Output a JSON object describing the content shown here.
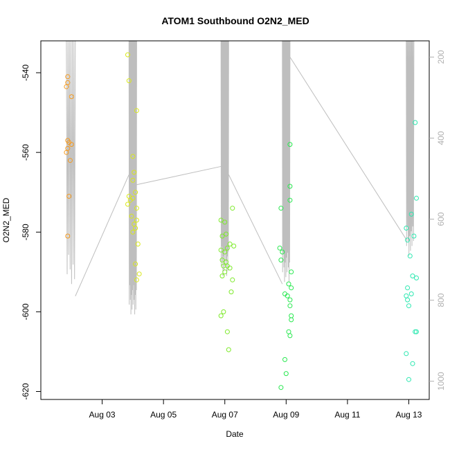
{
  "chart_data": {
    "type": "scatter",
    "title": "ATOM1 Southbound O2N2_MED",
    "xlabel": "Date",
    "ylabel": "O2N2_MED",
    "x_unit": "date",
    "xlim": [
      "2022-08-01T00:00",
      "2022-08-13T16:00"
    ],
    "ylim": [
      -622,
      -532
    ],
    "y2lim": [
      1045,
      160
    ],
    "x_ticks": [
      {
        "x": "2022-08-03T00:00",
        "label": "Aug 03"
      },
      {
        "x": "2022-08-05T00:00",
        "label": "Aug 05"
      },
      {
        "x": "2022-08-07T00:00",
        "label": "Aug 07"
      },
      {
        "x": "2022-08-09T00:00",
        "label": "Aug 09"
      },
      {
        "x": "2022-08-11T00:00",
        "label": "Aug 11"
      },
      {
        "x": "2022-08-13T00:00",
        "label": "Aug 13"
      }
    ],
    "y_ticks": [
      -540,
      -560,
      -580,
      -600,
      -620
    ],
    "y2_ticks": [
      200,
      400,
      600,
      800,
      1000
    ],
    "grid": false,
    "legend": "none",
    "depth_trace": {
      "color": "#bebebe",
      "segments": [
        {
          "x_start": "2022-08-01T20:00",
          "x_end": "2022-08-02T03:00",
          "y_top": 160,
          "y_bottom": 760,
          "n": 6
        },
        {
          "x_start": "2022-08-03T21:00",
          "x_end": "2022-08-04T03:00",
          "y_top": 160,
          "y_bottom": 835,
          "n": 14
        },
        {
          "x_start": "2022-08-06T21:00",
          "x_end": "2022-08-07T03:00",
          "y_top": 160,
          "y_bottom": 740,
          "n": 14
        },
        {
          "x_start": "2022-08-08T21:00",
          "x_end": "2022-08-09T03:00",
          "y_top": 160,
          "y_bottom": 755,
          "n": 12
        },
        {
          "x_start": "2022-08-12T22:00",
          "x_end": "2022-08-13T04:00",
          "y_top": 160,
          "y_bottom": 690,
          "n": 10
        }
      ],
      "connectors": [
        [
          [
            "2022-08-02T03:00",
            790
          ],
          [
            "2022-08-03T21:00",
            490
          ]
        ],
        [
          [
            "2022-08-04T03:00",
            515
          ],
          [
            "2022-08-06T21:00",
            470
          ]
        ],
        [
          [
            "2022-08-07T03:00",
            490
          ],
          [
            "2022-08-08T21:00",
            760
          ]
        ],
        [
          [
            "2022-08-09T03:00",
            200
          ],
          [
            "2022-08-12T22:00",
            650
          ]
        ]
      ]
    },
    "series": [
      {
        "color": "#f59a1f",
        "points": [
          {
            "x": "2022-08-01T21:00",
            "y": -541
          },
          {
            "x": "2022-08-01T21:00",
            "y": -542.5
          },
          {
            "x": "2022-08-01T20:00",
            "y": -543.5
          },
          {
            "x": "2022-08-02T00:00",
            "y": -546
          },
          {
            "x": "2022-08-01T21:00",
            "y": -557
          },
          {
            "x": "2022-08-01T22:00",
            "y": -557.5
          },
          {
            "x": "2022-08-02T00:00",
            "y": -558
          },
          {
            "x": "2022-08-01T21:00",
            "y": -559
          },
          {
            "x": "2022-08-01T20:00",
            "y": -560
          },
          {
            "x": "2022-08-01T23:00",
            "y": -562
          },
          {
            "x": "2022-08-01T22:00",
            "y": -571
          },
          {
            "x": "2022-08-01T21:00",
            "y": -581
          }
        ]
      },
      {
        "color": "#d9e81a",
        "points": [
          {
            "x": "2022-08-03T20:00",
            "y": -535.5
          },
          {
            "x": "2022-08-03T21:00",
            "y": -542
          },
          {
            "x": "2022-08-04T03:00",
            "y": -549.5
          },
          {
            "x": "2022-08-04T00:00",
            "y": -561
          },
          {
            "x": "2022-08-04T01:00",
            "y": -565
          },
          {
            "x": "2022-08-04T00:00",
            "y": -567
          },
          {
            "x": "2022-08-03T21:00",
            "y": -571
          },
          {
            "x": "2022-08-03T22:00",
            "y": -572
          },
          {
            "x": "2022-08-04T00:00",
            "y": -571.5
          },
          {
            "x": "2022-08-04T02:00",
            "y": -570
          },
          {
            "x": "2022-08-03T20:00",
            "y": -573
          },
          {
            "x": "2022-08-04T03:00",
            "y": -574
          },
          {
            "x": "2022-08-03T23:00",
            "y": -576
          },
          {
            "x": "2022-08-04T01:00",
            "y": -578
          },
          {
            "x": "2022-08-04T02:00",
            "y": -579
          },
          {
            "x": "2022-08-04T03:00",
            "y": -577
          },
          {
            "x": "2022-08-04T00:00",
            "y": -580
          },
          {
            "x": "2022-08-04T04:00",
            "y": -583
          },
          {
            "x": "2022-08-04T02:00",
            "y": -588
          },
          {
            "x": "2022-08-04T05:00",
            "y": -590.5
          },
          {
            "x": "2022-08-04T03:00",
            "y": -592
          }
        ]
      },
      {
        "color": "#7eea2b",
        "points": [
          {
            "x": "2022-08-07T06:00",
            "y": -574
          },
          {
            "x": "2022-08-06T21:00",
            "y": -577
          },
          {
            "x": "2022-08-07T00:00",
            "y": -577.5
          },
          {
            "x": "2022-08-06T22:00",
            "y": -581
          },
          {
            "x": "2022-08-07T01:00",
            "y": -580.5
          },
          {
            "x": "2022-08-07T04:00",
            "y": -583
          },
          {
            "x": "2022-08-07T07:00",
            "y": -583.5
          },
          {
            "x": "2022-08-07T02:00",
            "y": -584
          },
          {
            "x": "2022-08-06T21:00",
            "y": -584.5
          },
          {
            "x": "2022-08-07T00:00",
            "y": -585
          },
          {
            "x": "2022-08-06T22:00",
            "y": -587
          },
          {
            "x": "2022-08-07T01:00",
            "y": -587.5
          },
          {
            "x": "2022-08-06T23:00",
            "y": -588.5
          },
          {
            "x": "2022-08-07T02:00",
            "y": -588.5
          },
          {
            "x": "2022-08-07T04:00",
            "y": -589
          },
          {
            "x": "2022-08-07T00:00",
            "y": -590
          },
          {
            "x": "2022-08-06T22:00",
            "y": -591
          },
          {
            "x": "2022-08-07T06:00",
            "y": -592
          },
          {
            "x": "2022-08-07T05:00",
            "y": -595
          },
          {
            "x": "2022-08-06T23:00",
            "y": -600
          },
          {
            "x": "2022-08-06T21:00",
            "y": -601
          },
          {
            "x": "2022-08-07T02:00",
            "y": -605
          },
          {
            "x": "2022-08-07T03:00",
            "y": -609.5
          }
        ]
      },
      {
        "color": "#27e84e",
        "points": [
          {
            "x": "2022-08-09T03:00",
            "y": -558
          },
          {
            "x": "2022-08-09T03:00",
            "y": -568.5
          },
          {
            "x": "2022-08-09T03:00",
            "y": -572
          },
          {
            "x": "2022-08-08T20:00",
            "y": -574
          },
          {
            "x": "2022-08-08T19:00",
            "y": -584
          },
          {
            "x": "2022-08-08T21:00",
            "y": -585
          },
          {
            "x": "2022-08-08T20:00",
            "y": -587
          },
          {
            "x": "2022-08-09T04:00",
            "y": -590
          },
          {
            "x": "2022-08-09T02:00",
            "y": -593
          },
          {
            "x": "2022-08-09T04:00",
            "y": -594
          },
          {
            "x": "2022-08-08T23:00",
            "y": -595.5
          },
          {
            "x": "2022-08-09T01:00",
            "y": -596
          },
          {
            "x": "2022-08-09T03:00",
            "y": -597
          },
          {
            "x": "2022-08-09T03:00",
            "y": -598.5
          },
          {
            "x": "2022-08-09T04:00",
            "y": -601
          },
          {
            "x": "2022-08-09T04:00",
            "y": -602
          },
          {
            "x": "2022-08-09T02:00",
            "y": -605
          },
          {
            "x": "2022-08-09T03:00",
            "y": -606
          },
          {
            "x": "2022-08-08T23:00",
            "y": -612
          },
          {
            "x": "2022-08-09T00:00",
            "y": -615.5
          },
          {
            "x": "2022-08-08T20:00",
            "y": -619
          }
        ]
      },
      {
        "color": "#2be8b0",
        "points": [
          {
            "x": "2022-08-13T05:00",
            "y": -552.5
          },
          {
            "x": "2022-08-13T06:00",
            "y": -571.5
          },
          {
            "x": "2022-08-13T02:00",
            "y": -575.5
          },
          {
            "x": "2022-08-12T22:00",
            "y": -579
          },
          {
            "x": "2022-08-13T04:00",
            "y": -581
          },
          {
            "x": "2022-08-12T23:00",
            "y": -582
          },
          {
            "x": "2022-08-13T01:00",
            "y": -586
          },
          {
            "x": "2022-08-13T03:00",
            "y": -591
          },
          {
            "x": "2022-08-13T06:00",
            "y": -591.5
          },
          {
            "x": "2022-08-12T23:00",
            "y": -594
          },
          {
            "x": "2022-08-13T02:00",
            "y": -595.5
          },
          {
            "x": "2022-08-12T22:00",
            "y": -596
          },
          {
            "x": "2022-08-12T23:00",
            "y": -597
          },
          {
            "x": "2022-08-13T00:00",
            "y": -598.5
          },
          {
            "x": "2022-08-13T05:00",
            "y": -605
          },
          {
            "x": "2022-08-13T06:00",
            "y": -605
          },
          {
            "x": "2022-08-12T22:00",
            "y": -610.5
          },
          {
            "x": "2022-08-13T03:00",
            "y": -613
          },
          {
            "x": "2022-08-13T00:00",
            "y": -617
          }
        ]
      }
    ]
  }
}
